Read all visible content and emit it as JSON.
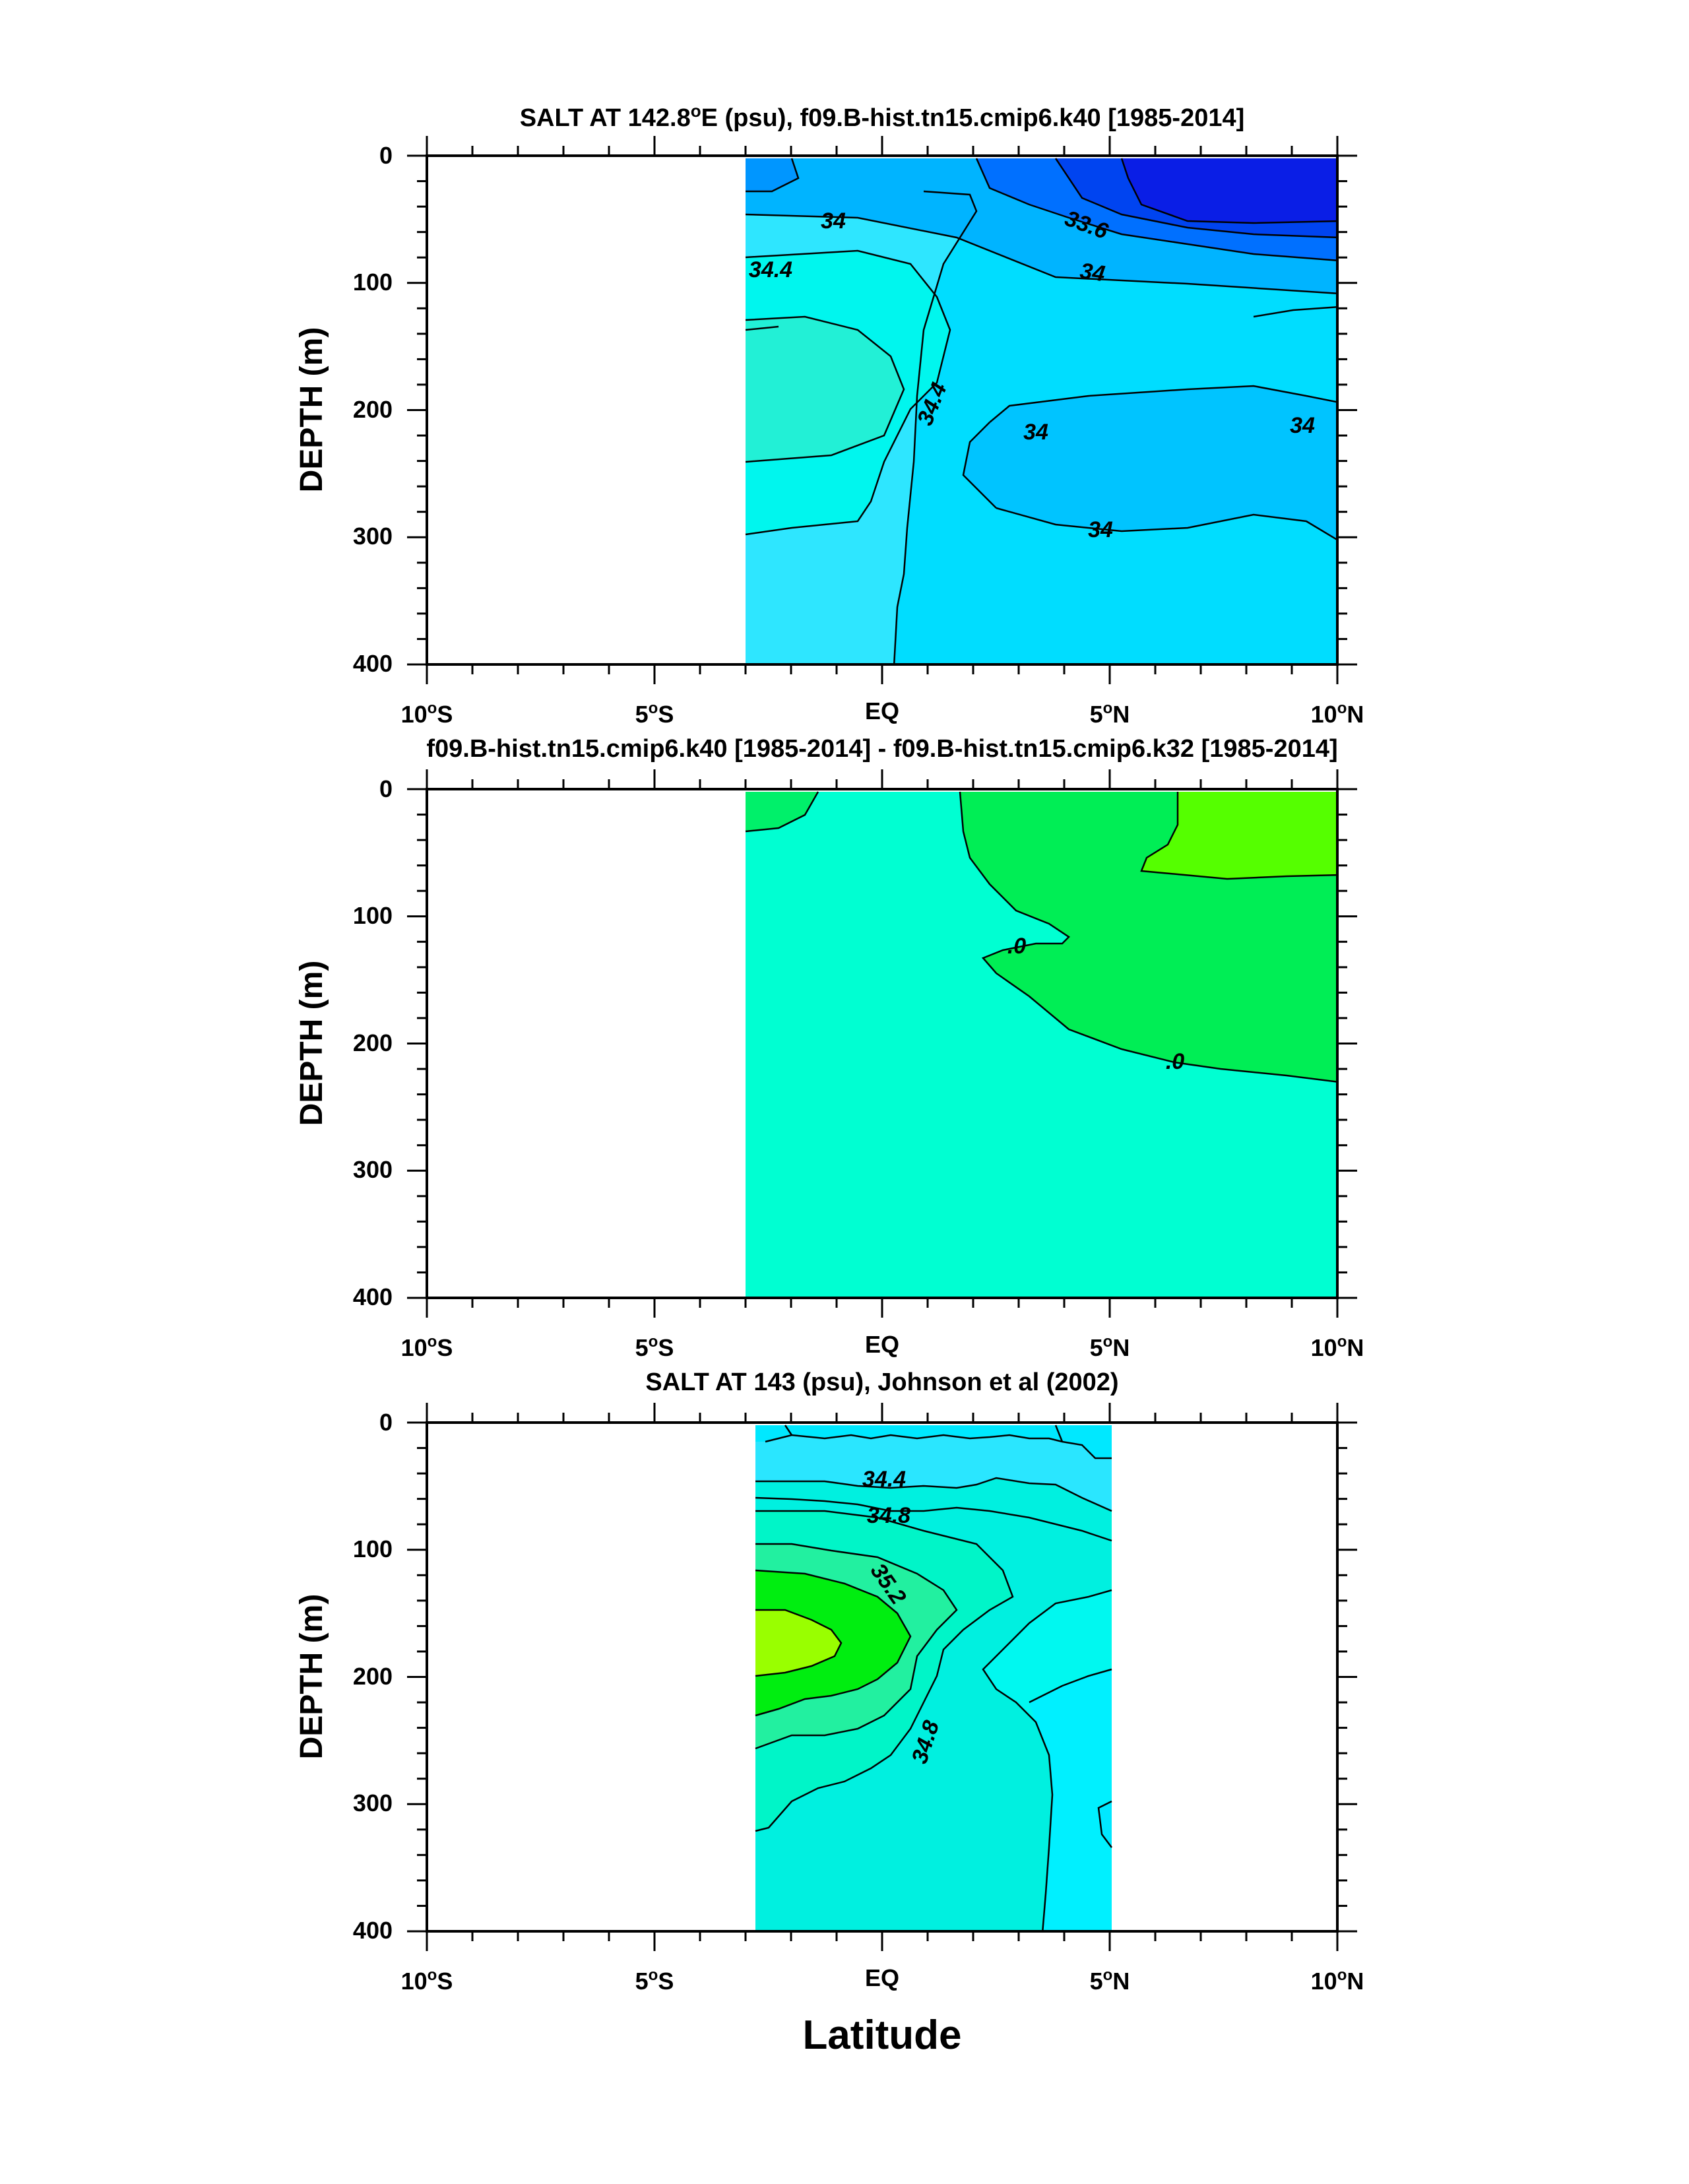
{
  "chart_data": [
    {
      "type": "contour",
      "title_parts": [
        "SALT AT 142.8",
        "o",
        "E (psu), f09.B-hist.tn15.cmip6.k40 [1985-2014]"
      ],
      "ylabel": "DEPTH (m)",
      "xlim": [
        -10,
        10
      ],
      "ylim": [
        400,
        0
      ],
      "yticks": [
        "0",
        "100",
        "200",
        "300",
        "400"
      ],
      "xticks": [
        {
          "deg": "10",
          "hemi": "S"
        },
        {
          "deg": "5",
          "hemi": "S"
        },
        {
          "deg": "",
          "hemi": "EQ"
        },
        {
          "deg": "5",
          "hemi": "N"
        },
        {
          "deg": "10",
          "hemi": "N"
        }
      ],
      "data_extent": {
        "lat_min": -3,
        "lat_max": 10,
        "depth_min": 5,
        "depth_max": 400
      },
      "contour_labels": [
        {
          "text": "34",
          "lat": -1.1,
          "depth": 50
        },
        {
          "text": "33.6",
          "lat": 4.4,
          "depth": 55
        },
        {
          "text": "34.4",
          "lat": -2.5,
          "depth": 93
        },
        {
          "text": "34",
          "lat": 4.6,
          "depth": 93
        },
        {
          "text": "34.4",
          "lat": 1.1,
          "depth": 195
        },
        {
          "text": "34",
          "lat": 3.3,
          "depth": 217
        },
        {
          "text": "34",
          "lat": 9.2,
          "depth": 212
        },
        {
          "text": "34",
          "lat": 4.8,
          "depth": 297
        }
      ]
    },
    {
      "type": "contour",
      "title_parts": [
        "f09.B-hist.tn15.cmip6.k40 [1985-2014] - f09.B-hist.tn15.cmip6.k32 [1985-2014]"
      ],
      "ylabel": "DEPTH (m)",
      "xlim": [
        -10,
        10
      ],
      "ylim": [
        400,
        0
      ],
      "yticks": [
        "0",
        "100",
        "200",
        "300",
        "400"
      ],
      "xticks": [
        {
          "deg": "10",
          "hemi": "S"
        },
        {
          "deg": "5",
          "hemi": "S"
        },
        {
          "deg": "",
          "hemi": "EQ"
        },
        {
          "deg": "5",
          "hemi": "N"
        },
        {
          "deg": "10",
          "hemi": "N"
        }
      ],
      "data_extent": {
        "lat_min": -3,
        "lat_max": 10,
        "depth_min": 5,
        "depth_max": 400
      },
      "contour_labels": [
        {
          "text": ".0",
          "lat": 2.9,
          "depth": 128
        },
        {
          "text": ".0",
          "lat": 6.3,
          "depth": 218
        }
      ]
    },
    {
      "type": "contour",
      "title_parts": [
        "SALT AT 143 (psu), Johnson et al (2002)"
      ],
      "ylabel": "DEPTH (m)",
      "xlim": [
        -10,
        10
      ],
      "ylim": [
        400,
        0
      ],
      "yticks": [
        "0",
        "100",
        "200",
        "300",
        "400"
      ],
      "xticks": [
        {
          "deg": "10",
          "hemi": "S"
        },
        {
          "deg": "5",
          "hemi": "S"
        },
        {
          "deg": "",
          "hemi": "EQ"
        },
        {
          "deg": "5",
          "hemi": "N"
        },
        {
          "deg": "10",
          "hemi": "N"
        }
      ],
      "data_extent": {
        "lat_min": -2.8,
        "lat_max": 5,
        "depth_min": 5,
        "depth_max": 400
      },
      "contour_labels": [
        {
          "text": "34.4",
          "lat": 0.1,
          "depth": 45
        },
        {
          "text": "34.8",
          "lat": 0.2,
          "depth": 75
        },
        {
          "text": "35.2",
          "lat": 0.2,
          "depth": 130
        },
        {
          "text": "34.8",
          "lat": 1,
          "depth": 258
        }
      ]
    }
  ],
  "xlabel": "Latitude"
}
